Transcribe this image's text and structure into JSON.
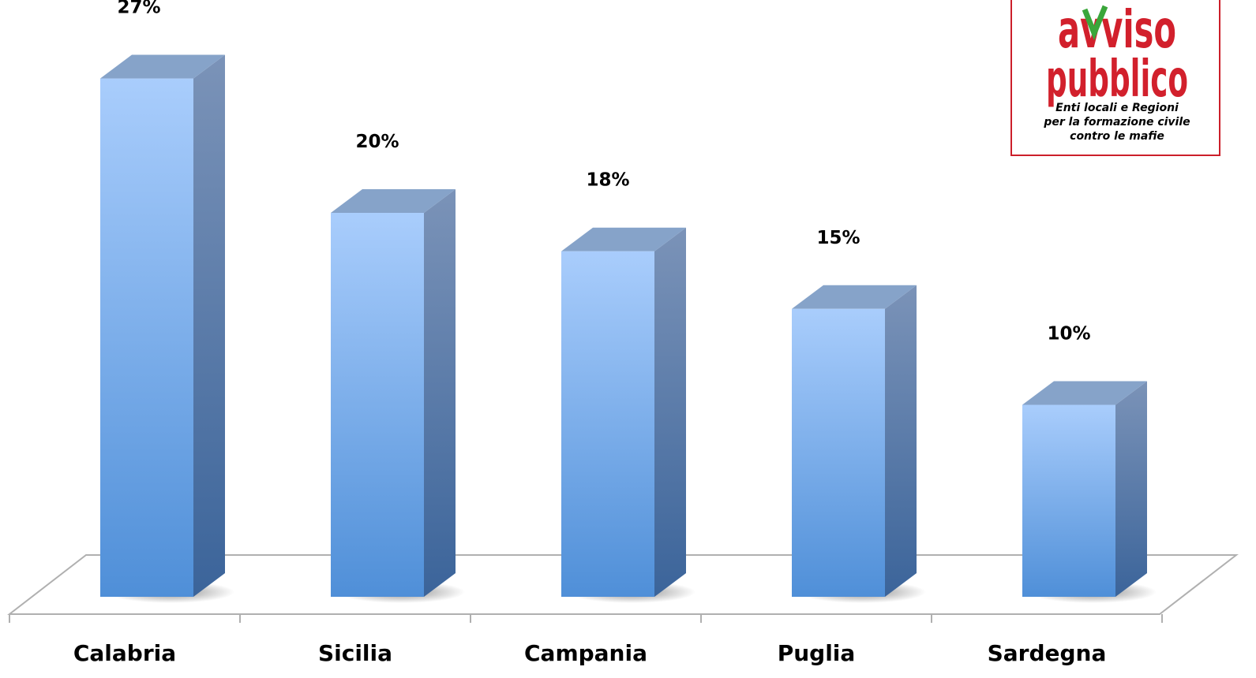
{
  "chart_data": {
    "type": "bar",
    "style": "3d-column",
    "categories": [
      "Calabria",
      "Sicilia",
      "Campania",
      "Puglia",
      "Sardegna"
    ],
    "values": [
      27,
      20,
      18,
      15,
      10
    ],
    "data_labels": [
      "27%",
      "20%",
      "18%",
      "15%",
      "10%"
    ],
    "unit": "%",
    "ylim": [
      0,
      27
    ],
    "grid": false,
    "legend": "none",
    "colors": {
      "bar_top_light": "#a9cdfc",
      "bar_bottom": "#4f8fd8",
      "bar_side_top": "#7b93b8",
      "bar_side_bottom": "#3b649a",
      "bar_cap": "#86a3c9",
      "floor_stroke": "#b0b0b0"
    }
  },
  "logo": {
    "line1": "avviso",
    "line2": "pubblico",
    "tagline": [
      "Enti locali e Regioni",
      "per la formazione civile",
      "contro le mafie"
    ],
    "brand_color": "#d2202c",
    "check_color": "#3aa63a"
  }
}
